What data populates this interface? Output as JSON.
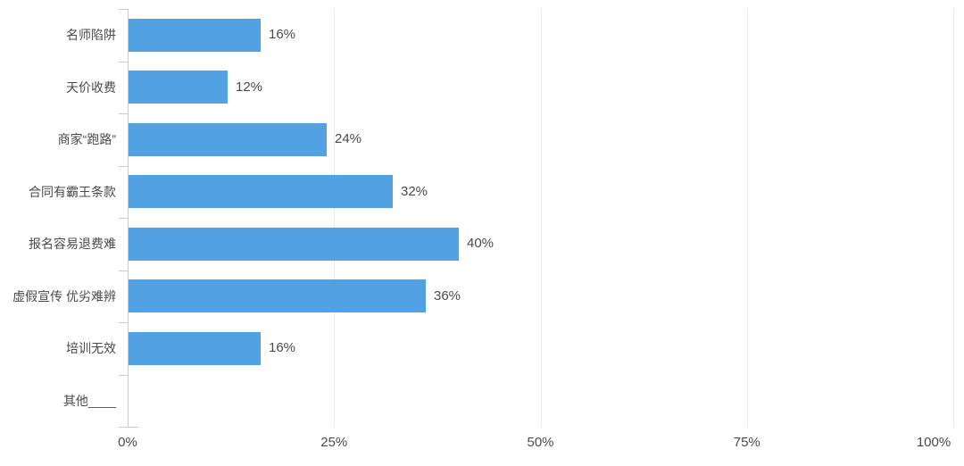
{
  "chart_data": {
    "type": "bar",
    "orientation": "horizontal",
    "title": "",
    "xlabel": "",
    "ylabel": "",
    "categories": [
      "名师陷阱",
      "天价收费",
      "商家“跑路”",
      "合同有霸王条款",
      "报名容易退费难",
      "虚假宣传 优劣难辨",
      "培训无效",
      "其他____"
    ],
    "values": [
      16,
      12,
      24,
      32,
      40,
      36,
      16,
      0
    ],
    "value_labels": [
      "16%",
      "12%",
      "24%",
      "32%",
      "40%",
      "36%",
      "16%",
      ""
    ],
    "x_ticks": [
      "0%",
      "25%",
      "50%",
      "75%",
      "100%"
    ],
    "x_tick_values": [
      0,
      25,
      50,
      75,
      100
    ],
    "xlim": [
      0,
      100
    ],
    "grid": "vertical-gridlines-at-ticks",
    "legend": "none",
    "colors": {
      "bar": "#52a2e3",
      "axis": "#c9cdd2",
      "grid": "#e9ebed",
      "text": "#4a4a4a"
    }
  }
}
